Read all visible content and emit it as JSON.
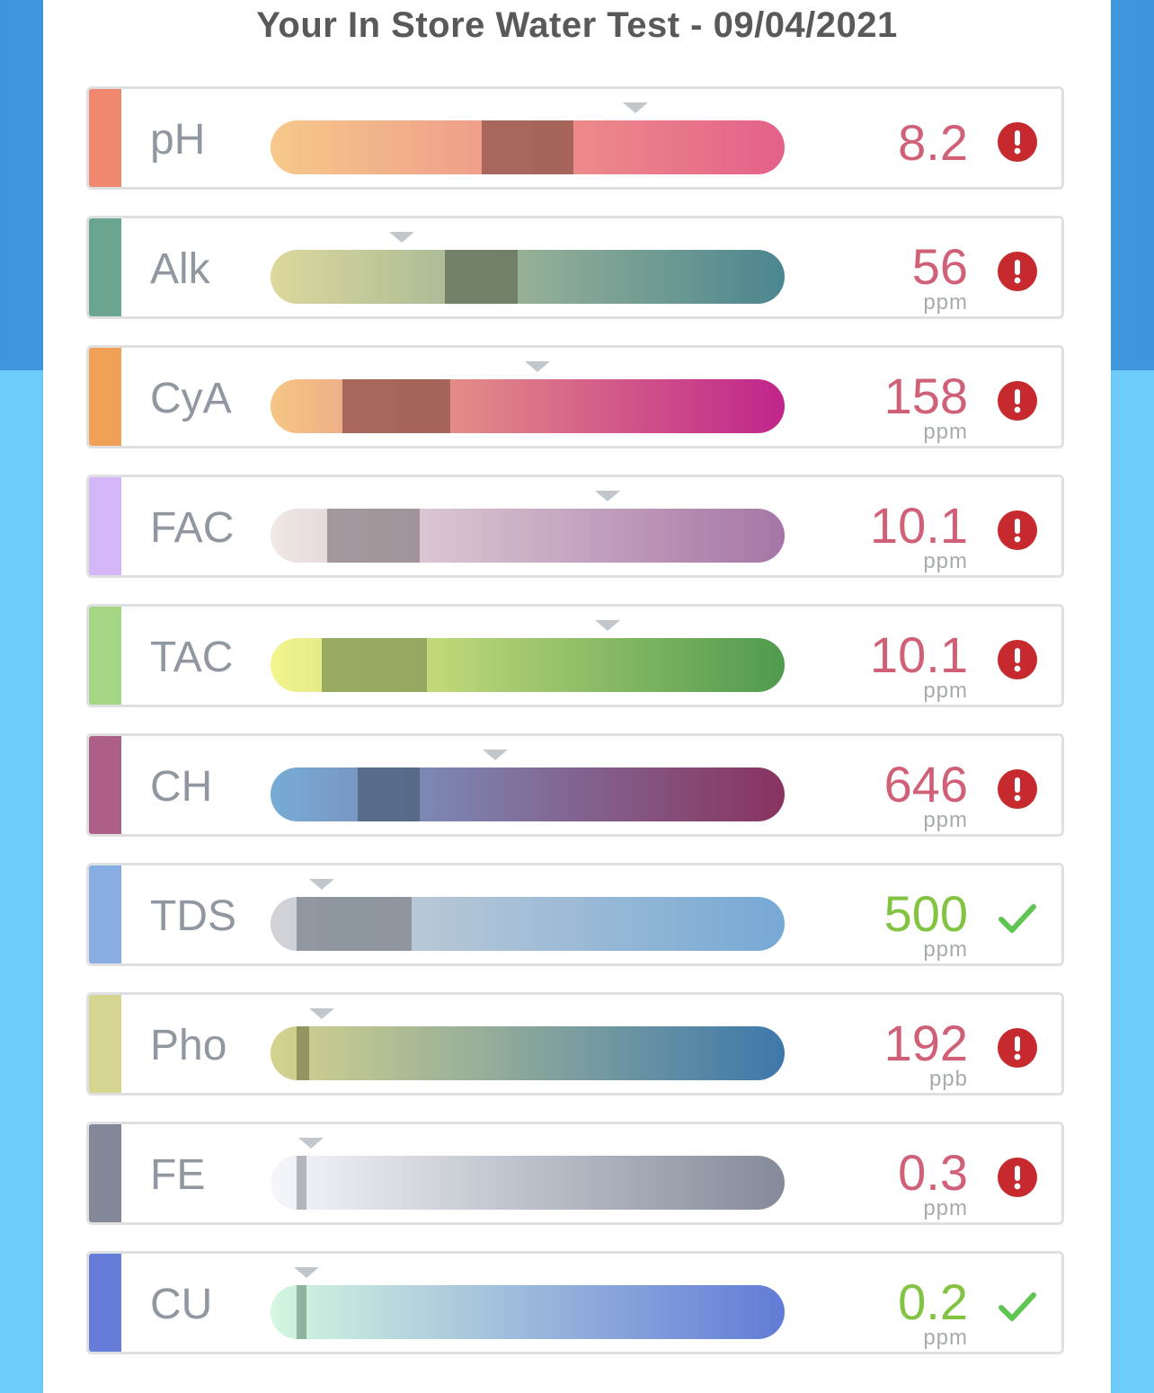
{
  "title": "Your In Store Water Test - 09/04/2021",
  "colors": {
    "alert_red": "#c62a2f",
    "check_green": "#5ec553",
    "value_bad": "#d06077",
    "value_good": "#82c341",
    "marker_grey": "#c2c7cb"
  },
  "tests": [
    {
      "label": "pH",
      "value": "8.2",
      "unit": "",
      "status": "alert",
      "status_icon": "exclamation-icon",
      "swatch": "#f0876f",
      "gradient": [
        "#f6c98a",
        "#e5608a"
      ],
      "ideal_color": "rgba(160,95,85,0.9)",
      "ideal_range": [
        0.41,
        0.59
      ],
      "marker": 0.71
    },
    {
      "label": "Alk",
      "value": "56",
      "unit": "ppm",
      "status": "alert",
      "status_icon": "exclamation-icon",
      "swatch": "#6aa58f",
      "gradient": [
        "#ddd89b",
        "#4b8690"
      ],
      "ideal_color": "rgba(110,125,100,0.92)",
      "ideal_range": [
        0.34,
        0.48
      ],
      "marker": 0.255
    },
    {
      "label": "CyA",
      "value": "158",
      "unit": "ppm",
      "status": "alert",
      "status_icon": "exclamation-icon",
      "swatch": "#f1a155",
      "gradient": [
        "#f6c685",
        "#c0248b"
      ],
      "ideal_color": "rgba(160,95,85,0.9)",
      "ideal_range": [
        0.14,
        0.35
      ],
      "marker": 0.52
    },
    {
      "label": "FAC",
      "value": "10.1",
      "unit": "ppm",
      "status": "alert",
      "status_icon": "exclamation-icon",
      "swatch": "#d4b7f6",
      "gradient": [
        "#efe8e4",
        "#a676a6"
      ],
      "ideal_color": "rgba(150,140,145,0.85)",
      "ideal_range": [
        0.11,
        0.29
      ],
      "marker": 0.655
    },
    {
      "label": "TAC",
      "value": "10.1",
      "unit": "ppm",
      "status": "alert",
      "status_icon": "exclamation-icon",
      "swatch": "#a5d683",
      "gradient": [
        "#f4f58e",
        "#4f9a4e"
      ],
      "ideal_color": "rgba(140,160,90,0.85)",
      "ideal_range": [
        0.1,
        0.305
      ],
      "marker": 0.655
    },
    {
      "label": "CH",
      "value": "646",
      "unit": "ppm",
      "status": "alert",
      "status_icon": "exclamation-icon",
      "swatch": "#ad5f87",
      "gradient": [
        "#76acd6",
        "#89335f"
      ],
      "ideal_color": "rgba(85,105,135,0.95)",
      "ideal_range": [
        0.17,
        0.29
      ],
      "marker": 0.437
    },
    {
      "label": "TDS",
      "value": "500",
      "unit": "ppm",
      "status": "ok",
      "status_icon": "check-icon",
      "swatch": "#88ade3",
      "gradient": [
        "#d2d3d6",
        "#76a9d5"
      ],
      "ideal_color": "rgba(140,148,155,0.95)",
      "ideal_range": [
        0.05,
        0.275
      ],
      "marker": 0.1
    },
    {
      "label": "Pho",
      "value": "192",
      "unit": "ppb",
      "status": "alert",
      "status_icon": "exclamation-icon",
      "swatch": "#d5d591",
      "gradient": [
        "#d5d38d",
        "#3d78ab"
      ],
      "ideal_color": "rgba(140,145,95,0.95)",
      "ideal_range": [
        0.05,
        0.075
      ],
      "marker": 0.1
    },
    {
      "label": "FE",
      "value": "0.3",
      "unit": "ppm",
      "status": "alert",
      "status_icon": "exclamation-icon",
      "swatch": "#828898",
      "gradient": [
        "#f6f7fb",
        "#848a99"
      ],
      "ideal_color": "rgba(175,178,183,0.95)",
      "ideal_range": [
        0.05,
        0.07
      ],
      "marker": 0.078
    },
    {
      "label": "CU",
      "value": "0.2",
      "unit": "ppm",
      "status": "ok",
      "status_icon": "check-icon",
      "swatch": "#667cd9",
      "gradient": [
        "#d4f7df",
        "#627bd8"
      ],
      "ideal_color": "rgba(140,175,155,0.95)",
      "ideal_range": [
        0.05,
        0.07
      ],
      "marker": 0.07
    }
  ]
}
